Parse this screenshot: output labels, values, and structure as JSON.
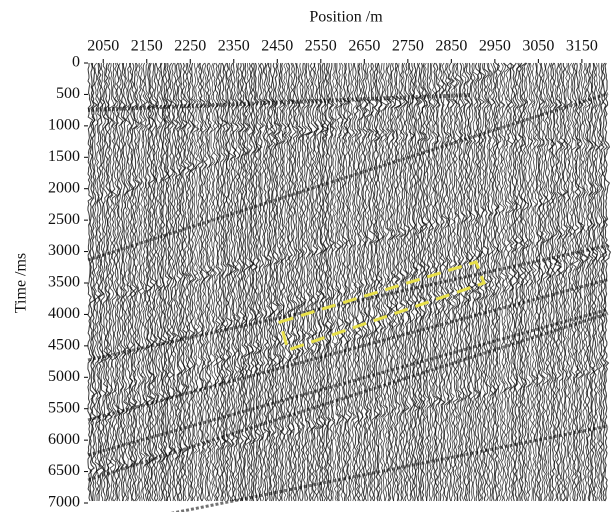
{
  "chart_data": {
    "type": "seismic",
    "xlabel": "Position /m",
    "ylabel": "Time /ms",
    "xlim": [
      2015,
      3210
    ],
    "xticks": [
      2050,
      2150,
      2250,
      2350,
      2450,
      2550,
      2650,
      2750,
      2850,
      2950,
      3050,
      3150
    ],
    "ylim": [
      0,
      7000
    ],
    "yticks": [
      0,
      500,
      1000,
      1500,
      2000,
      2500,
      3000,
      3500,
      4000,
      4500,
      5000,
      5500,
      6000,
      6500,
      7000
    ]
  }
}
